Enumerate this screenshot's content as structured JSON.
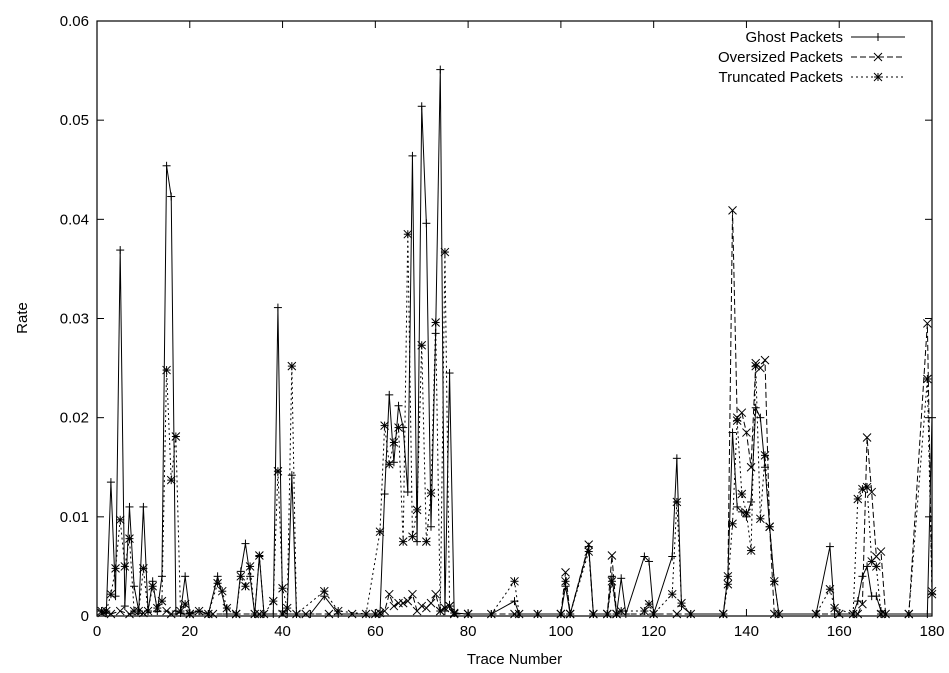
{
  "chart_data": {
    "type": "line",
    "xlabel": "Trace Number",
    "ylabel": "Rate",
    "xlim": [
      0,
      180
    ],
    "ylim": [
      0,
      0.06
    ],
    "x_ticks": [
      "0",
      "20",
      "40",
      "60",
      "80",
      "100",
      "120",
      "140",
      "160",
      "180"
    ],
    "y_ticks": [
      "0",
      "0.01",
      "0.02",
      "0.03",
      "0.04",
      "0.05",
      "0.06"
    ],
    "grid": false,
    "legend_position": "top-right",
    "series": [
      {
        "name": "Ghost Packets",
        "style": "solid",
        "marker": "plus",
        "points": [
          [
            1,
            0.0005
          ],
          [
            2,
            0.0003
          ],
          [
            3,
            0.0135
          ],
          [
            4,
            0.002
          ],
          [
            5,
            0.0369
          ],
          [
            6,
            0.001
          ],
          [
            7,
            0.011
          ],
          [
            8,
            0.003
          ],
          [
            9,
            0.0005
          ],
          [
            10,
            0.011
          ],
          [
            11,
            0.0005
          ],
          [
            12,
            0.0035
          ],
          [
            13,
            0.0005
          ],
          [
            14,
            0.004
          ],
          [
            15,
            0.0454
          ],
          [
            16,
            0.0423
          ],
          [
            17,
            0.0005
          ],
          [
            18,
            0.0003
          ],
          [
            19,
            0.004
          ],
          [
            20,
            0.0003
          ],
          [
            22,
            0.0005
          ],
          [
            24,
            0.0002
          ],
          [
            26,
            0.004
          ],
          [
            28,
            0.0002
          ],
          [
            30,
            0.0002
          ],
          [
            31,
            0.0045
          ],
          [
            32,
            0.0073
          ],
          [
            33,
            0.004
          ],
          [
            34,
            0.0002
          ],
          [
            35,
            0.006
          ],
          [
            36,
            0.0002
          ],
          [
            38,
            0.0002
          ],
          [
            39,
            0.0311
          ],
          [
            40,
            0.0005
          ],
          [
            41,
            0.0002
          ],
          [
            42,
            0.0142
          ],
          [
            43,
            0.0002
          ],
          [
            46,
            0.0002
          ],
          [
            49,
            0.002
          ],
          [
            52,
            0.0002
          ],
          [
            58,
            0.0002
          ],
          [
            60,
            0.0002
          ],
          [
            61,
            0.0002
          ],
          [
            62,
            0.0123
          ],
          [
            63,
            0.0223
          ],
          [
            64,
            0.0155
          ],
          [
            65,
            0.0212
          ],
          [
            66,
            0.019
          ],
          [
            67,
            0.0125
          ],
          [
            68,
            0.0464
          ],
          [
            69,
            0.0075
          ],
          [
            70,
            0.0514
          ],
          [
            71,
            0.0396
          ],
          [
            72,
            0.009
          ],
          [
            73,
            0.0285
          ],
          [
            74,
            0.0551
          ],
          [
            75,
            0.0005
          ],
          [
            76,
            0.0245
          ],
          [
            77,
            0.0003
          ],
          [
            80,
            0.0002
          ],
          [
            85,
            0.0002
          ],
          [
            90,
            0.0015
          ],
          [
            91,
            0.0002
          ],
          [
            95,
            0.0002
          ],
          [
            100,
            0.0002
          ],
          [
            101,
            0.003
          ],
          [
            102,
            0.0002
          ],
          [
            106,
            0.007
          ],
          [
            107,
            0.0002
          ],
          [
            110,
            0.0002
          ],
          [
            111,
            0.004
          ],
          [
            112,
            0.0002
          ],
          [
            113,
            0.0038
          ],
          [
            114,
            0.0002
          ],
          [
            118,
            0.006
          ],
          [
            119,
            0.0055
          ],
          [
            120,
            0.0002
          ],
          [
            124,
            0.006
          ],
          [
            125,
            0.0159
          ],
          [
            126,
            0.001
          ],
          [
            128,
            0.0002
          ],
          [
            135,
            0.0002
          ],
          [
            136,
            0.004
          ],
          [
            137,
            0.0185
          ],
          [
            138,
            0.011
          ],
          [
            139,
            0.0105
          ],
          [
            140,
            0.01
          ],
          [
            141,
            0.0115
          ],
          [
            142,
            0.021
          ],
          [
            143,
            0.02
          ],
          [
            144,
            0.015
          ],
          [
            145,
            0.009
          ],
          [
            146,
            0.0035
          ],
          [
            147,
            0.0002
          ],
          [
            155,
            0.0002
          ],
          [
            158,
            0.007
          ],
          [
            159,
            0.0002
          ],
          [
            163,
            0.0002
          ],
          [
            164,
            0.0015
          ],
          [
            165,
            0.004
          ],
          [
            166,
            0.005
          ],
          [
            167,
            0.002
          ],
          [
            168,
            0.002
          ],
          [
            169,
            0.0005
          ],
          [
            170,
            0.0002
          ],
          [
            175,
            0.0002
          ],
          [
            179,
            0.0002
          ],
          [
            180,
            0.02
          ]
        ]
      },
      {
        "name": "Oversized Packets",
        "style": "dashed",
        "marker": "x",
        "points": [
          [
            1,
            0.0003
          ],
          [
            3,
            0.0002
          ],
          [
            5,
            0.0005
          ],
          [
            7,
            0.0002
          ],
          [
            10,
            0.0003
          ],
          [
            15,
            0.0005
          ],
          [
            16,
            0.0002
          ],
          [
            20,
            0.0002
          ],
          [
            25,
            0.0002
          ],
          [
            30,
            0.0002
          ],
          [
            35,
            0.0002
          ],
          [
            40,
            0.0002
          ],
          [
            45,
            0.0002
          ],
          [
            50,
            0.0002
          ],
          [
            55,
            0.0002
          ],
          [
            60,
            0.0002
          ],
          [
            61,
            0.0003
          ],
          [
            62,
            0.0005
          ],
          [
            63,
            0.0022
          ],
          [
            64,
            0.001
          ],
          [
            65,
            0.0013
          ],
          [
            66,
            0.0013
          ],
          [
            67,
            0.0015
          ],
          [
            68,
            0.0022
          ],
          [
            69,
            0.0005
          ],
          [
            70,
            0.001
          ],
          [
            71,
            0.0008
          ],
          [
            72,
            0.0013
          ],
          [
            73,
            0.0022
          ],
          [
            74,
            0.0005
          ],
          [
            75,
            0.0008
          ],
          [
            76,
            0.001
          ],
          [
            77,
            0.0002
          ],
          [
            80,
            0.0002
          ],
          [
            90,
            0.0002
          ],
          [
            100,
            0.0002
          ],
          [
            101,
            0.0044
          ],
          [
            102,
            0.0002
          ],
          [
            106,
            0.0072
          ],
          [
            107,
            0.0002
          ],
          [
            110,
            0.0002
          ],
          [
            111,
            0.0061
          ],
          [
            112,
            0.0002
          ],
          [
            125,
            0.0002
          ],
          [
            135,
            0.0002
          ],
          [
            136,
            0.004
          ],
          [
            137,
            0.0409
          ],
          [
            138,
            0.02
          ],
          [
            139,
            0.0205
          ],
          [
            140,
            0.0185
          ],
          [
            141,
            0.015
          ],
          [
            142,
            0.0255
          ],
          [
            143,
            0.025
          ],
          [
            144,
            0.0258
          ],
          [
            145,
            0.009
          ],
          [
            146,
            0.0002
          ],
          [
            155,
            0.0002
          ],
          [
            160,
            0.0002
          ],
          [
            164,
            0.0002
          ],
          [
            165,
            0.0012
          ],
          [
            166,
            0.018
          ],
          [
            167,
            0.0125
          ],
          [
            168,
            0.006
          ],
          [
            169,
            0.0065
          ],
          [
            170,
            0.0002
          ],
          [
            175,
            0.0002
          ],
          [
            179,
            0.0295
          ],
          [
            180,
            0.0025
          ]
        ]
      },
      {
        "name": "Truncated Packets",
        "style": "dotted",
        "marker": "star",
        "points": [
          [
            1,
            0.0005
          ],
          [
            2,
            0.0005
          ],
          [
            3,
            0.0022
          ],
          [
            4,
            0.0048
          ],
          [
            5,
            0.0097
          ],
          [
            6,
            0.005
          ],
          [
            7,
            0.0078
          ],
          [
            8,
            0.0005
          ],
          [
            9,
            0.0005
          ],
          [
            10,
            0.0048
          ],
          [
            11,
            0.0005
          ],
          [
            12,
            0.003
          ],
          [
            13,
            0.0008
          ],
          [
            14,
            0.0015
          ],
          [
            15,
            0.0248
          ],
          [
            16,
            0.0137
          ],
          [
            17,
            0.0181
          ],
          [
            18,
            0.0005
          ],
          [
            19,
            0.0012
          ],
          [
            20,
            0.0002
          ],
          [
            22,
            0.0005
          ],
          [
            24,
            0.0002
          ],
          [
            26,
            0.0033
          ],
          [
            27,
            0.0025
          ],
          [
            28,
            0.0008
          ],
          [
            30,
            0.0002
          ],
          [
            31,
            0.004
          ],
          [
            32,
            0.003
          ],
          [
            33,
            0.005
          ],
          [
            34,
            0.0002
          ],
          [
            35,
            0.0061
          ],
          [
            36,
            0.0002
          ],
          [
            38,
            0.0015
          ],
          [
            39,
            0.0146
          ],
          [
            40,
            0.0028
          ],
          [
            41,
            0.0008
          ],
          [
            42,
            0.0252
          ],
          [
            43,
            0.0002
          ],
          [
            49,
            0.0025
          ],
          [
            52,
            0.0005
          ],
          [
            58,
            0.0002
          ],
          [
            61,
            0.0085
          ],
          [
            62,
            0.0192
          ],
          [
            63,
            0.0153
          ],
          [
            64,
            0.0175
          ],
          [
            65,
            0.019
          ],
          [
            66,
            0.0075
          ],
          [
            67,
            0.0385
          ],
          [
            68,
            0.008
          ],
          [
            69,
            0.0107
          ],
          [
            70,
            0.0273
          ],
          [
            71,
            0.0075
          ],
          [
            72,
            0.0124
          ],
          [
            73,
            0.0296
          ],
          [
            74,
            0.0005
          ],
          [
            75,
            0.0367
          ],
          [
            76,
            0.001
          ],
          [
            77,
            0.0003
          ],
          [
            80,
            0.0002
          ],
          [
            85,
            0.0002
          ],
          [
            90,
            0.0035
          ],
          [
            91,
            0.0002
          ],
          [
            95,
            0.0002
          ],
          [
            100,
            0.0002
          ],
          [
            101,
            0.0035
          ],
          [
            102,
            0.0002
          ],
          [
            106,
            0.0065
          ],
          [
            107,
            0.0002
          ],
          [
            110,
            0.0002
          ],
          [
            111,
            0.0035
          ],
          [
            112,
            0.0002
          ],
          [
            113,
            0.0005
          ],
          [
            118,
            0.0005
          ],
          [
            119,
            0.0012
          ],
          [
            120,
            0.0002
          ],
          [
            124,
            0.0022
          ],
          [
            125,
            0.0115
          ],
          [
            126,
            0.0013
          ],
          [
            128,
            0.0002
          ],
          [
            135,
            0.0002
          ],
          [
            136,
            0.0032
          ],
          [
            137,
            0.0093
          ],
          [
            138,
            0.0197
          ],
          [
            139,
            0.0123
          ],
          [
            140,
            0.0104
          ],
          [
            141,
            0.0066
          ],
          [
            142,
            0.0252
          ],
          [
            143,
            0.0098
          ],
          [
            144,
            0.0162
          ],
          [
            145,
            0.009
          ],
          [
            146,
            0.0035
          ],
          [
            147,
            0.0002
          ],
          [
            155,
            0.0002
          ],
          [
            158,
            0.0027
          ],
          [
            159,
            0.0008
          ],
          [
            163,
            0.0002
          ],
          [
            164,
            0.0118
          ],
          [
            165,
            0.0128
          ],
          [
            166,
            0.013
          ],
          [
            167,
            0.0055
          ],
          [
            168,
            0.005
          ],
          [
            169,
            0.0002
          ],
          [
            175,
            0.0002
          ],
          [
            179,
            0.0239
          ],
          [
            180,
            0.0022
          ]
        ]
      }
    ]
  }
}
